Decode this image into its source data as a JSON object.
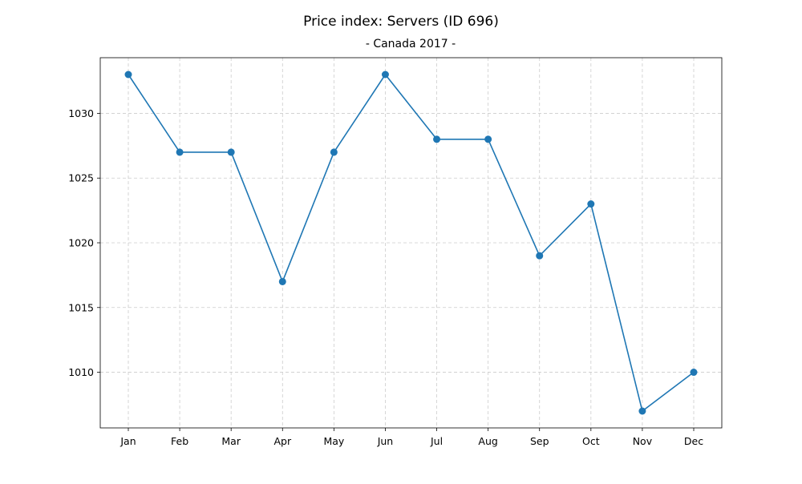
{
  "chart_data": {
    "type": "line",
    "title": "Price index: Servers (ID 696)",
    "subtitle": "- Canada 2017 -",
    "xlabel": "",
    "ylabel": "",
    "categories": [
      "Jan",
      "Feb",
      "Mar",
      "Apr",
      "May",
      "Jun",
      "Jul",
      "Aug",
      "Sep",
      "Oct",
      "Nov",
      "Dec"
    ],
    "series": [
      {
        "values": [
          1033,
          1027,
          1027,
          1017,
          1027,
          1033,
          1028,
          1028,
          1019,
          1023,
          1007,
          1010
        ]
      }
    ],
    "yticks": [
      1010,
      1015,
      1020,
      1025,
      1030
    ],
    "ylim": [
      1005.7,
      1034.3
    ],
    "grid": true,
    "legend": "none",
    "colors": {
      "line": "#1f77b4",
      "grid": "#cccccc",
      "axis": "#000000"
    }
  }
}
